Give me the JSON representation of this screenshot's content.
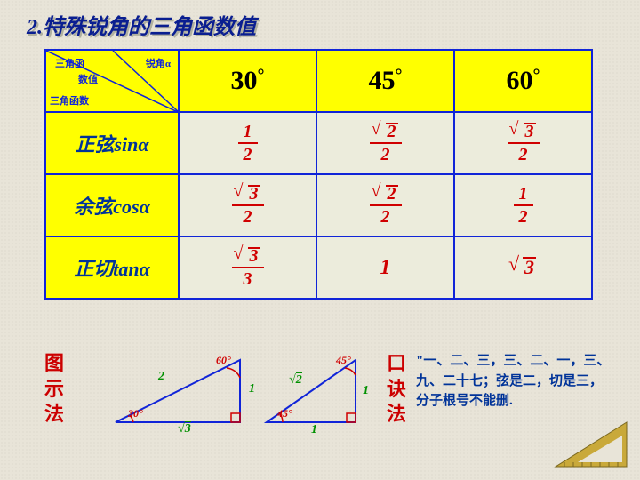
{
  "title": "2.特殊锐角的三角函数值",
  "title_color": "#0a1e90",
  "title_shadow": "#b0b0a0",
  "table": {
    "corner": {
      "top": "三角函",
      "mid": "数值",
      "right": "锐角α",
      "bottom": "三角函数"
    },
    "angles": [
      "30",
      "45",
      "60"
    ],
    "rows": [
      {
        "label": "正弦sinα",
        "vals": [
          {
            "type": "frac",
            "num": "1",
            "den": "2",
            "surd": false
          },
          {
            "type": "frac",
            "num": "2",
            "den": "2",
            "surd": true
          },
          {
            "type": "frac",
            "num": "3",
            "den": "2",
            "surd": true
          }
        ]
      },
      {
        "label": "余弦cosα",
        "vals": [
          {
            "type": "frac",
            "num": "3",
            "den": "2",
            "surd": true
          },
          {
            "type": "frac",
            "num": "2",
            "den": "2",
            "surd": true
          },
          {
            "type": "frac",
            "num": "1",
            "den": "2",
            "surd": false
          }
        ]
      },
      {
        "label": "正切tanα",
        "vals": [
          {
            "type": "frac",
            "num": "3",
            "den": "3",
            "surd": true
          },
          {
            "type": "plain",
            "text": "1"
          },
          {
            "type": "surd",
            "text": "3"
          }
        ]
      }
    ]
  },
  "methods": {
    "diagram_label": "图示法",
    "mnemonic_label": "口诀法",
    "mnemonic_text": "\"一、二、三，三、二、一，三、九、二十七；弦是二，切是三，分子根号不能删."
  },
  "triangles": {
    "t1": {
      "hyp": "2",
      "opp": "1",
      "adj": "3",
      "adj_surd": true,
      "angA": "30°",
      "angB": "60°"
    },
    "t2": {
      "hyp": "2",
      "hyp_surd": true,
      "opp": "1",
      "adj": "1",
      "angA": "45°",
      "angB": "45°"
    }
  },
  "colors": {
    "blue": "#1024d8",
    "yellow": "#ffff00",
    "red": "#d00000",
    "green": "#009000",
    "heading_blue": "#003399",
    "bg": "#e8e4d8",
    "cell_bg": "#ececdc"
  }
}
